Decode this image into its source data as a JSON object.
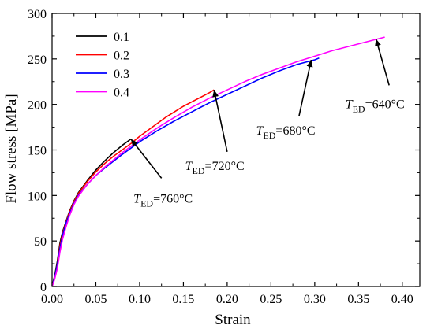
{
  "chart_data": {
    "type": "line",
    "xlabel": "Strain",
    "ylabel": "Flow stress [MPa]",
    "xlim": [
      0,
      0.42
    ],
    "ylim": [
      0,
      300
    ],
    "xticks": [
      "0.00",
      "0.05",
      "0.10",
      "0.15",
      "0.20",
      "0.25",
      "0.30",
      "0.35",
      "0.40"
    ],
    "yticks": [
      "0",
      "50",
      "100",
      "150",
      "200",
      "250",
      "300"
    ],
    "grid": false,
    "legend_position": "top-left",
    "series": [
      {
        "name": "0.1",
        "color": "#000000",
        "x": [
          0,
          0.003,
          0.006,
          0.009,
          0.012,
          0.016,
          0.02,
          0.025,
          0.03,
          0.04,
          0.05,
          0.06,
          0.07,
          0.08,
          0.09
        ],
        "y": [
          0,
          12,
          28,
          48,
          60,
          72,
          83,
          94,
          103,
          116,
          128,
          138,
          147,
          155,
          162
        ]
      },
      {
        "name": "0.2",
        "color": "#ff0000",
        "x": [
          0,
          0.003,
          0.006,
          0.009,
          0.012,
          0.016,
          0.02,
          0.025,
          0.03,
          0.04,
          0.05,
          0.06,
          0.07,
          0.08,
          0.09,
          0.1,
          0.11,
          0.12,
          0.13,
          0.14,
          0.15,
          0.16,
          0.17,
          0.18,
          0.185
        ],
        "y": [
          0,
          10,
          25,
          45,
          58,
          71,
          82,
          93,
          102,
          115,
          126,
          135,
          143,
          150,
          157,
          165,
          172,
          179,
          186,
          192,
          198,
          203,
          208,
          213,
          216
        ]
      },
      {
        "name": "0.3",
        "color": "#0000ff",
        "x": [
          0,
          0.003,
          0.006,
          0.009,
          0.012,
          0.016,
          0.02,
          0.025,
          0.03,
          0.04,
          0.05,
          0.06,
          0.08,
          0.1,
          0.12,
          0.14,
          0.16,
          0.18,
          0.2,
          0.22,
          0.24,
          0.26,
          0.28,
          0.3,
          0.305
        ],
        "y": [
          0,
          10,
          24,
          42,
          56,
          70,
          80,
          91,
          100,
          112,
          122,
          130,
          145,
          159,
          171,
          182,
          192,
          202,
          211,
          220,
          229,
          237,
          244,
          249,
          251
        ]
      },
      {
        "name": "0.4",
        "color": "#ff00ff",
        "x": [
          0,
          0.003,
          0.006,
          0.009,
          0.012,
          0.016,
          0.02,
          0.025,
          0.03,
          0.04,
          0.05,
          0.06,
          0.08,
          0.1,
          0.12,
          0.14,
          0.16,
          0.18,
          0.2,
          0.22,
          0.24,
          0.26,
          0.28,
          0.3,
          0.32,
          0.34,
          0.36,
          0.38
        ],
        "y": [
          0,
          8,
          20,
          38,
          52,
          66,
          78,
          90,
          99,
          112,
          122,
          131,
          147,
          161,
          174,
          186,
          197,
          207,
          216,
          225,
          233,
          240,
          247,
          253,
          259,
          264,
          269,
          274
        ]
      }
    ],
    "annotations": [
      {
        "label_italic": "T",
        "label_sub": "ED",
        "label_rest": "=760°C",
        "text_x": 0.093,
        "text_y": 92,
        "tip_x": 0.09,
        "tip_y": 162,
        "tail_x": 0.125,
        "tail_y": 119
      },
      {
        "label_italic": "T",
        "label_sub": "ED",
        "label_rest": "=720°C",
        "text_x": 0.152,
        "text_y": 128,
        "tip_x": 0.185,
        "tip_y": 216,
        "tail_x": 0.2,
        "tail_y": 148
      },
      {
        "label_italic": "T",
        "label_sub": "ED",
        "label_rest": "=680°C",
        "text_x": 0.233,
        "text_y": 167,
        "tip_x": 0.296,
        "tip_y": 249,
        "tail_x": 0.282,
        "tail_y": 187
      },
      {
        "label_italic": "T",
        "label_sub": "ED",
        "label_rest": "=640°C",
        "text_x": 0.335,
        "text_y": 196,
        "tip_x": 0.37,
        "tip_y": 272,
        "tail_x": 0.385,
        "tail_y": 221
      }
    ]
  }
}
